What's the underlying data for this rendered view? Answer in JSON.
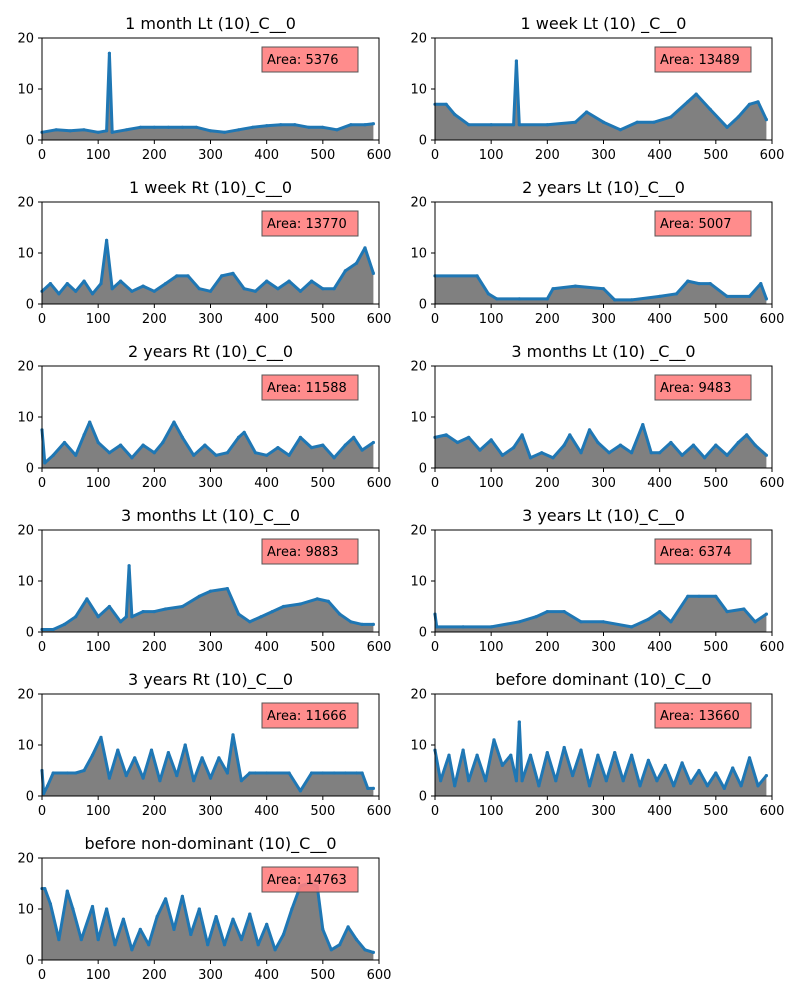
{
  "figure": {
    "fill_color": "#808080",
    "line_color": "#1f77b4",
    "badge_color": "#ff8080",
    "area_prefix": "Area: ",
    "x_ticks": [
      "0",
      "100",
      "200",
      "300",
      "400",
      "500",
      "600"
    ],
    "y_ticks": [
      "0",
      "10",
      "20"
    ]
  },
  "chart_data": [
    {
      "type": "area",
      "title": "1 month Lt (10)_C__0",
      "area_label": "5376",
      "xlim": [
        0,
        600
      ],
      "ylim": [
        0,
        20
      ],
      "x": [
        0,
        25,
        50,
        75,
        100,
        115,
        120,
        125,
        150,
        175,
        200,
        225,
        250,
        275,
        300,
        325,
        350,
        375,
        400,
        425,
        450,
        475,
        500,
        525,
        550,
        575,
        590
      ],
      "y": [
        1.5,
        2,
        1.8,
        2,
        1.5,
        1.8,
        17,
        1.5,
        2,
        2.5,
        2.5,
        2.5,
        2.5,
        2.5,
        1.8,
        1.5,
        2,
        2.5,
        2.8,
        3,
        3,
        2.5,
        2.5,
        2,
        3,
        3,
        3.2
      ]
    },
    {
      "type": "area",
      "title": "1 week Lt (10) _C__0",
      "area_label": "13489",
      "xlim": [
        0,
        600
      ],
      "ylim": [
        0,
        20
      ],
      "x": [
        0,
        20,
        35,
        60,
        100,
        140,
        145,
        150,
        200,
        250,
        270,
        300,
        330,
        360,
        390,
        420,
        450,
        465,
        490,
        520,
        540,
        560,
        575,
        590
      ],
      "y": [
        7,
        7,
        5,
        3,
        3,
        3,
        15.5,
        3,
        3,
        3.5,
        5.5,
        3.5,
        2,
        3.5,
        3.5,
        4.5,
        7.5,
        9,
        6,
        2.5,
        4.5,
        7,
        7.5,
        4
      ]
    },
    {
      "type": "area",
      "title": "1 week Rt (10)_C__0",
      "area_label": "13770",
      "xlim": [
        0,
        600
      ],
      "ylim": [
        0,
        20
      ],
      "x": [
        0,
        15,
        30,
        45,
        60,
        75,
        90,
        105,
        115,
        125,
        140,
        160,
        180,
        200,
        220,
        240,
        260,
        280,
        300,
        320,
        340,
        360,
        380,
        400,
        420,
        440,
        460,
        480,
        500,
        520,
        540,
        560,
        575,
        590
      ],
      "y": [
        2.5,
        4,
        2,
        4,
        2.5,
        4.5,
        2,
        4,
        12.5,
        3,
        4.5,
        2.5,
        3.5,
        2.5,
        4,
        5.5,
        5.5,
        3,
        2.5,
        5.5,
        6,
        3,
        2.5,
        4.5,
        3,
        4.5,
        2.5,
        4.5,
        3,
        3,
        6.5,
        8,
        11,
        6
      ]
    },
    {
      "type": "area",
      "title": "2 years Lt (10)_C__0",
      "area_label": "5007",
      "xlim": [
        0,
        600
      ],
      "ylim": [
        0,
        20
      ],
      "x": [
        0,
        75,
        95,
        110,
        150,
        200,
        210,
        250,
        300,
        320,
        350,
        400,
        430,
        450,
        470,
        490,
        520,
        560,
        580,
        590
      ],
      "y": [
        5.5,
        5.5,
        2,
        1,
        1,
        1,
        3,
        3.5,
        3,
        0.8,
        0.8,
        1.5,
        2,
        4.5,
        4,
        4,
        1.5,
        1.5,
        4,
        1
      ]
    },
    {
      "type": "area",
      "title": "2 years Rt (10)_C__0",
      "area_label": "11588",
      "xlim": [
        0,
        600
      ],
      "ylim": [
        0,
        20
      ],
      "x": [
        0,
        5,
        20,
        40,
        60,
        75,
        85,
        100,
        120,
        140,
        160,
        180,
        200,
        215,
        235,
        250,
        270,
        290,
        310,
        330,
        350,
        360,
        380,
        400,
        420,
        440,
        460,
        480,
        500,
        520,
        540,
        555,
        570,
        590
      ],
      "y": [
        7.5,
        1,
        2.5,
        5,
        2.5,
        6.5,
        9,
        5,
        3,
        4.5,
        2,
        4.5,
        3,
        5,
        9,
        6,
        2.5,
        4.5,
        2.5,
        3,
        6,
        7,
        3,
        2.5,
        4,
        2.5,
        6,
        4,
        4.5,
        2,
        4.5,
        6,
        3.5,
        5
      ]
    },
    {
      "type": "area",
      "title": "3 months Lt (10) _C__0",
      "area_label": "9483",
      "xlim": [
        0,
        600
      ],
      "ylim": [
        0,
        20
      ],
      "x": [
        0,
        20,
        40,
        60,
        80,
        100,
        120,
        140,
        155,
        170,
        190,
        210,
        230,
        240,
        260,
        275,
        290,
        310,
        330,
        350,
        370,
        385,
        400,
        420,
        440,
        460,
        480,
        500,
        520,
        540,
        555,
        570,
        590
      ],
      "y": [
        6,
        6.5,
        5,
        6,
        3.5,
        5.5,
        2.5,
        4,
        6.5,
        2,
        3,
        2,
        4.5,
        6.5,
        3,
        7.5,
        5,
        3,
        4.5,
        3,
        8.5,
        3,
        3,
        5,
        2.5,
        4.5,
        2,
        4.5,
        2.5,
        5,
        6.5,
        4.5,
        2.5
      ]
    },
    {
      "type": "area",
      "title": "3 months Lt (10)_C__0",
      "area_label": "9883",
      "xlim": [
        0,
        600
      ],
      "ylim": [
        0,
        20
      ],
      "x": [
        0,
        20,
        40,
        60,
        80,
        100,
        120,
        140,
        150,
        155,
        160,
        180,
        200,
        220,
        250,
        280,
        300,
        330,
        350,
        370,
        390,
        410,
        430,
        460,
        490,
        510,
        530,
        550,
        570,
        590
      ],
      "y": [
        0.5,
        0.5,
        1.5,
        3,
        6.5,
        3,
        5,
        2,
        3,
        13,
        3,
        4,
        4,
        4.5,
        5,
        7,
        8,
        8.5,
        3.5,
        2,
        3,
        4,
        5,
        5.5,
        6.5,
        6,
        3.5,
        2,
        1.5,
        1.5
      ]
    },
    {
      "type": "area",
      "title": "3 years Lt (10)_C__0",
      "area_label": "6374",
      "xlim": [
        0,
        600
      ],
      "ylim": [
        0,
        20
      ],
      "x": [
        0,
        3,
        50,
        100,
        150,
        180,
        200,
        230,
        260,
        300,
        350,
        380,
        400,
        420,
        450,
        470,
        500,
        520,
        550,
        570,
        590
      ],
      "y": [
        3.5,
        1,
        1,
        1,
        2,
        3,
        4,
        4,
        2,
        2,
        1,
        2.5,
        4,
        2,
        7,
        7,
        7,
        4,
        4.5,
        2,
        3.5
      ]
    },
    {
      "type": "area",
      "title": "3 years Rt (10)_C__0",
      "area_label": "11666",
      "xlim": [
        0,
        600
      ],
      "ylim": [
        0,
        20
      ],
      "x": [
        0,
        3,
        10,
        20,
        45,
        60,
        75,
        90,
        105,
        120,
        135,
        150,
        165,
        180,
        195,
        210,
        225,
        240,
        255,
        270,
        285,
        300,
        315,
        330,
        340,
        355,
        370,
        380,
        400,
        440,
        460,
        480,
        500,
        520,
        540,
        560,
        570,
        580,
        590
      ],
      "y": [
        5,
        0.5,
        2,
        4.5,
        4.5,
        4.5,
        5,
        8,
        11.5,
        3.5,
        9,
        4,
        7.5,
        3.5,
        9,
        3,
        8.5,
        4,
        10,
        3,
        7.5,
        3.5,
        7.5,
        4.5,
        12,
        3,
        4.5,
        4.5,
        4.5,
        4.5,
        1,
        4.5,
        4.5,
        4.5,
        4.5,
        4.5,
        4.5,
        1.5,
        1.5
      ]
    },
    {
      "type": "area",
      "title": "before dominant (10)_C__0",
      "area_label": "13660",
      "xlim": [
        0,
        600
      ],
      "ylim": [
        0,
        20
      ],
      "x": [
        0,
        10,
        25,
        35,
        50,
        60,
        75,
        90,
        105,
        120,
        135,
        145,
        150,
        155,
        170,
        185,
        200,
        215,
        230,
        245,
        260,
        275,
        290,
        305,
        320,
        335,
        350,
        365,
        380,
        395,
        410,
        425,
        440,
        455,
        470,
        485,
        500,
        515,
        530,
        545,
        560,
        575,
        590
      ],
      "y": [
        9,
        3,
        8,
        2,
        9,
        3,
        8,
        3,
        11,
        6,
        8,
        3,
        14.5,
        3,
        8,
        2,
        8.5,
        3,
        9.5,
        4,
        9,
        2,
        8,
        3,
        8.5,
        3,
        8,
        2,
        7,
        3,
        6,
        2,
        6.5,
        2.5,
        5,
        2,
        4.5,
        1.5,
        5.5,
        2,
        7.5,
        2,
        4
      ]
    },
    {
      "type": "area",
      "title": "before non-dominant (10)_C__0",
      "area_label": "14763",
      "xlim": [
        0,
        600
      ],
      "ylim": [
        0,
        20
      ],
      "x": [
        0,
        5,
        15,
        30,
        45,
        55,
        70,
        90,
        100,
        115,
        130,
        145,
        160,
        175,
        190,
        205,
        220,
        235,
        250,
        265,
        280,
        295,
        310,
        325,
        340,
        355,
        370,
        385,
        400,
        415,
        430,
        445,
        460,
        475,
        490,
        500,
        515,
        530,
        545,
        560,
        575,
        590
      ],
      "y": [
        14,
        14,
        11,
        4,
        13.5,
        10,
        4,
        10.5,
        4,
        10,
        3,
        8,
        2,
        6,
        3,
        8.5,
        12,
        6,
        12.5,
        5,
        10,
        3,
        8.5,
        3,
        8,
        4,
        9,
        3,
        7,
        2,
        5,
        10,
        14.5,
        15,
        14.5,
        6,
        2,
        3,
        6.5,
        4,
        2,
        1.5
      ]
    }
  ]
}
